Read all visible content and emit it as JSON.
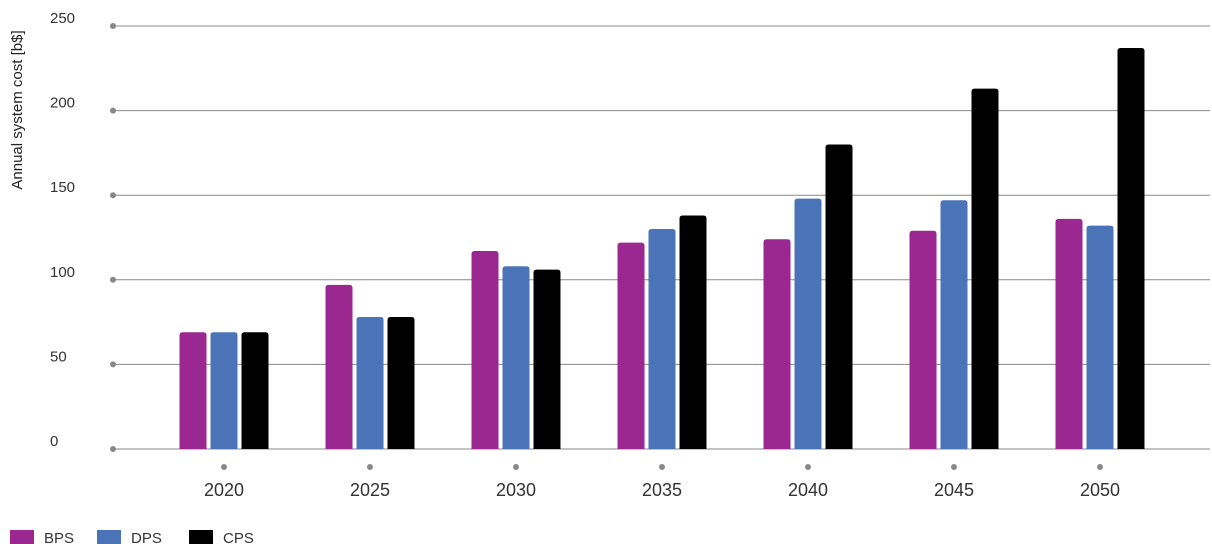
{
  "chart_data": {
    "type": "bar",
    "title": "",
    "xlabel": "",
    "ylabel": "Annual system cost [b$]",
    "ylim": [
      0,
      250
    ],
    "yticks": [
      0,
      50,
      100,
      150,
      200,
      250
    ],
    "categories": [
      "2020",
      "2025",
      "2030",
      "2035",
      "2040",
      "2045",
      "2050"
    ],
    "series": [
      {
        "name": "BPS",
        "color": "#9b2790",
        "values": [
          69,
          97,
          117,
          122,
          124,
          129,
          136
        ]
      },
      {
        "name": "DPS",
        "color": "#4a73b8",
        "values": [
          69,
          78,
          108,
          130,
          148,
          147,
          132
        ]
      },
      {
        "name": "CPS",
        "color": "#000000",
        "values": [
          69,
          78,
          106,
          138,
          180,
          213,
          237
        ]
      }
    ],
    "grid": true,
    "legend_position": "bottom-left",
    "gridline_color": "#888888",
    "marker_color": "#888888"
  }
}
